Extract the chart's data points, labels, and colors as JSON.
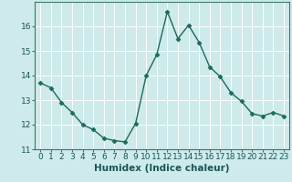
{
  "x": [
    0,
    1,
    2,
    3,
    4,
    5,
    6,
    7,
    8,
    9,
    10,
    11,
    12,
    13,
    14,
    15,
    16,
    17,
    18,
    19,
    20,
    21,
    22,
    23
  ],
  "y": [
    13.7,
    13.5,
    12.9,
    12.5,
    12.0,
    11.8,
    11.45,
    11.35,
    11.3,
    12.05,
    14.0,
    14.85,
    16.6,
    15.5,
    16.05,
    15.35,
    14.35,
    13.95,
    13.3,
    12.95,
    12.45,
    12.35,
    12.5,
    12.35
  ],
  "line_color": "#1a6b5a",
  "marker": "D",
  "marker_size": 2.5,
  "bg_color": "#ceeaea",
  "grid_color": "#ffffff",
  "xlabel": "Humidex (Indice chaleur)",
  "ylim": [
    11,
    17
  ],
  "xlim": [
    -0.5,
    23.5
  ],
  "yticks": [
    11,
    12,
    13,
    14,
    15,
    16
  ],
  "xticks": [
    0,
    1,
    2,
    3,
    4,
    5,
    6,
    7,
    8,
    9,
    10,
    11,
    12,
    13,
    14,
    15,
    16,
    17,
    18,
    19,
    20,
    21,
    22,
    23
  ],
  "xtick_labels": [
    "0",
    "1",
    "2",
    "3",
    "4",
    "5",
    "6",
    "7",
    "8",
    "9",
    "10",
    "11",
    "12",
    "13",
    "14",
    "15",
    "16",
    "17",
    "18",
    "19",
    "20",
    "21",
    "22",
    "23"
  ],
  "xlabel_fontsize": 7.5,
  "tick_fontsize": 6.5,
  "line_width": 1.0
}
